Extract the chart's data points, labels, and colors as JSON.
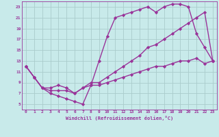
{
  "background_color": "#c8eaea",
  "grid_color": "#aacccc",
  "line_color": "#993399",
  "marker": "D",
  "marker_size": 2.2,
  "line_width": 1.0,
  "xlabel": "Windchill (Refroidissement éolien,°C)",
  "xlim": [
    -0.5,
    23.5
  ],
  "ylim": [
    4,
    24
  ],
  "xticks": [
    0,
    1,
    2,
    3,
    4,
    5,
    6,
    7,
    8,
    9,
    10,
    11,
    12,
    13,
    14,
    15,
    16,
    17,
    18,
    19,
    20,
    21,
    22,
    23
  ],
  "yticks": [
    5,
    7,
    9,
    11,
    13,
    15,
    17,
    19,
    21,
    23
  ],
  "series": [
    {
      "x": [
        0,
        1,
        2,
        3,
        4,
        5,
        6,
        7,
        8,
        9,
        10,
        11,
        12,
        13,
        14,
        15,
        16,
        17,
        18,
        19,
        20,
        21,
        22,
        23
      ],
      "y": [
        12,
        10,
        8,
        7,
        6.5,
        6,
        5.5,
        5,
        8.5,
        13,
        17.5,
        21,
        21.5,
        22,
        22.5,
        23,
        22,
        23,
        23.5,
        23.5,
        23,
        18,
        15.5,
        13
      ]
    },
    {
      "x": [
        0,
        1,
        2,
        3,
        4,
        5,
        6,
        7,
        8,
        9,
        10,
        11,
        12,
        13,
        14,
        15,
        16,
        17,
        18,
        19,
        20,
        21,
        22,
        23
      ],
      "y": [
        12,
        10,
        8,
        7.5,
        7.5,
        7.5,
        7,
        8,
        9,
        9,
        10,
        11,
        12,
        13,
        14,
        15.5,
        16,
        17,
        18,
        19,
        20,
        21,
        22,
        13
      ]
    },
    {
      "x": [
        0,
        1,
        2,
        3,
        4,
        5,
        6,
        7,
        8,
        9,
        10,
        11,
        12,
        13,
        14,
        15,
        16,
        17,
        18,
        19,
        20,
        21,
        22,
        23
      ],
      "y": [
        12,
        10,
        8,
        8,
        8.5,
        8,
        7,
        8,
        8.5,
        8.5,
        9,
        9.5,
        10,
        10.5,
        11,
        11.5,
        12,
        12,
        12.5,
        13,
        13,
        13.5,
        12.5,
        13
      ]
    }
  ]
}
